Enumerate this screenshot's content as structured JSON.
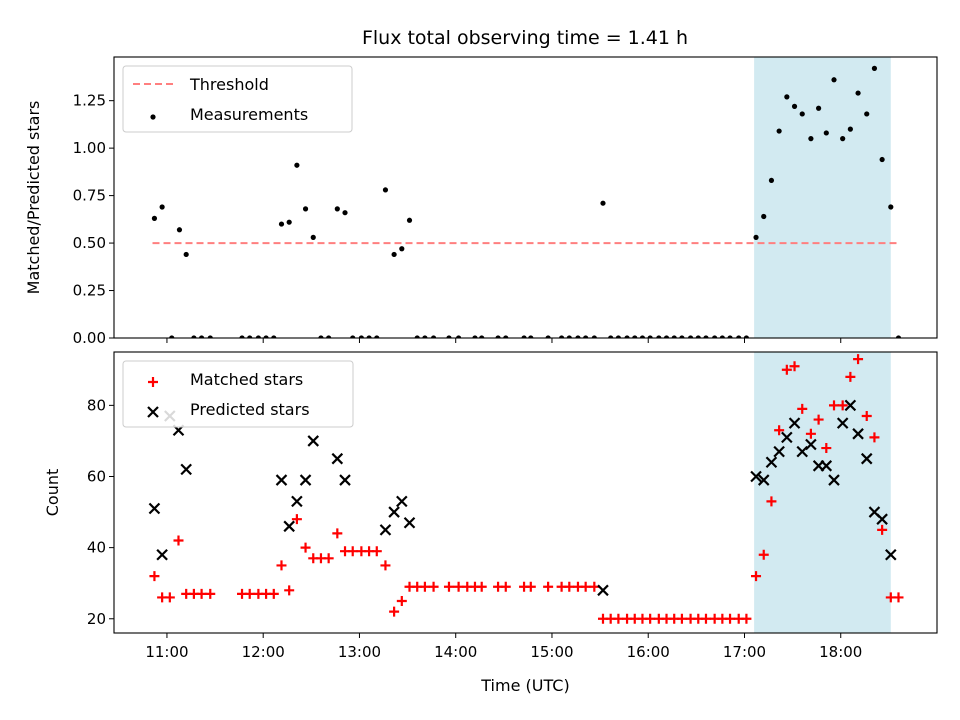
{
  "figure": {
    "title": "Flux total observing time = 1.41 h"
  },
  "chart_data": [
    {
      "type": "scatter",
      "title": "Flux total observing time = 1.41 h",
      "xlabel": "",
      "ylabel": "Matched/Predicted stars",
      "xlim": [
        10.45,
        19.0
      ],
      "ylim": [
        0.0,
        1.48
      ],
      "yticks": [
        0.0,
        0.25,
        0.5,
        0.75,
        1.0,
        1.25
      ],
      "ytick_labels": [
        "0.00",
        "0.25",
        "0.50",
        "0.75",
        "1.00",
        "1.25"
      ],
      "legend_position": "top-left",
      "shaded_region": {
        "x": [
          17.1,
          18.52
        ],
        "color": "#add8e6"
      },
      "threshold": {
        "name": "Threshold",
        "y": 0.5,
        "x": [
          10.85,
          18.6
        ],
        "color": "#ff7f7f"
      },
      "series": [
        {
          "name": "Measurements",
          "color": "#000000",
          "points": [
            [
              10.87,
              0.63
            ],
            [
              10.95,
              0.69
            ],
            [
              11.05,
              0.0
            ],
            [
              11.13,
              0.57
            ],
            [
              11.2,
              0.44
            ],
            [
              11.28,
              0.0
            ],
            [
              11.36,
              0.0
            ],
            [
              11.45,
              0.0
            ],
            [
              11.78,
              0.0
            ],
            [
              11.86,
              0.0
            ],
            [
              11.95,
              0.0
            ],
            [
              12.03,
              0.0
            ],
            [
              12.11,
              0.0
            ],
            [
              12.19,
              0.6
            ],
            [
              12.27,
              0.61
            ],
            [
              12.35,
              0.91
            ],
            [
              12.44,
              0.68
            ],
            [
              12.52,
              0.53
            ],
            [
              12.6,
              0.0
            ],
            [
              12.68,
              0.0
            ],
            [
              12.77,
              0.68
            ],
            [
              12.85,
              0.66
            ],
            [
              12.93,
              0.0
            ],
            [
              13.02,
              0.0
            ],
            [
              13.1,
              0.0
            ],
            [
              13.18,
              0.0
            ],
            [
              13.27,
              0.78
            ],
            [
              13.36,
              0.44
            ],
            [
              13.44,
              0.47
            ],
            [
              13.52,
              0.62
            ],
            [
              13.6,
              0.0
            ],
            [
              13.68,
              0.0
            ],
            [
              13.77,
              0.0
            ],
            [
              13.93,
              0.0
            ],
            [
              14.03,
              0.0
            ],
            [
              14.2,
              0.0
            ],
            [
              14.27,
              0.0
            ],
            [
              14.44,
              0.0
            ],
            [
              14.52,
              0.0
            ],
            [
              14.71,
              0.0
            ],
            [
              14.78,
              0.0
            ],
            [
              14.96,
              0.0
            ],
            [
              15.1,
              0.0
            ],
            [
              15.18,
              0.0
            ],
            [
              15.27,
              0.0
            ],
            [
              15.35,
              0.0
            ],
            [
              15.44,
              0.0
            ],
            [
              15.53,
              0.71
            ],
            [
              15.61,
              0.0
            ],
            [
              15.69,
              0.0
            ],
            [
              15.78,
              0.0
            ],
            [
              15.86,
              0.0
            ],
            [
              15.94,
              0.0
            ],
            [
              16.02,
              0.0
            ],
            [
              16.11,
              0.0
            ],
            [
              16.19,
              0.0
            ],
            [
              16.27,
              0.0
            ],
            [
              16.35,
              0.0
            ],
            [
              16.44,
              0.0
            ],
            [
              16.52,
              0.0
            ],
            [
              16.6,
              0.0
            ],
            [
              16.69,
              0.0
            ],
            [
              16.77,
              0.0
            ],
            [
              16.85,
              0.0
            ],
            [
              16.94,
              0.0
            ],
            [
              17.02,
              0.0
            ],
            [
              17.12,
              0.53
            ],
            [
              17.2,
              0.64
            ],
            [
              17.28,
              0.83
            ],
            [
              17.36,
              1.09
            ],
            [
              17.44,
              1.27
            ],
            [
              17.52,
              1.22
            ],
            [
              17.6,
              1.18
            ],
            [
              17.69,
              1.05
            ],
            [
              17.77,
              1.21
            ],
            [
              17.85,
              1.08
            ],
            [
              17.93,
              1.36
            ],
            [
              18.02,
              1.05
            ],
            [
              18.1,
              1.1
            ],
            [
              18.18,
              1.29
            ],
            [
              18.27,
              1.18
            ],
            [
              18.35,
              1.42
            ],
            [
              18.43,
              0.94
            ],
            [
              18.52,
              0.69
            ],
            [
              18.6,
              0.0
            ]
          ]
        }
      ]
    },
    {
      "type": "scatter",
      "xlabel": "Time (UTC)",
      "ylabel": "Count",
      "xlim": [
        10.45,
        19.0
      ],
      "ylim": [
        16.0,
        95.0
      ],
      "xticks": [
        11,
        12,
        13,
        14,
        15,
        16,
        17,
        18
      ],
      "xtick_labels": [
        "11:00",
        "12:00",
        "13:00",
        "14:00",
        "15:00",
        "16:00",
        "17:00",
        "18:00"
      ],
      "yticks": [
        20,
        40,
        60,
        80
      ],
      "ytick_labels": [
        "20",
        "40",
        "60",
        "80"
      ],
      "legend_position": "top-left",
      "shaded_region": {
        "x": [
          17.1,
          18.52
        ],
        "color": "#add8e6"
      },
      "series": [
        {
          "name": "Matched stars",
          "marker": "plus",
          "color": "#ff0000",
          "points": [
            [
              10.87,
              32
            ],
            [
              10.95,
              26
            ],
            [
              11.03,
              26
            ],
            [
              11.12,
              42
            ],
            [
              11.2,
              27
            ],
            [
              11.28,
              27
            ],
            [
              11.36,
              27
            ],
            [
              11.45,
              27
            ],
            [
              11.78,
              27
            ],
            [
              11.86,
              27
            ],
            [
              11.95,
              27
            ],
            [
              12.03,
              27
            ],
            [
              12.11,
              27
            ],
            [
              12.19,
              35
            ],
            [
              12.27,
              28
            ],
            [
              12.35,
              48
            ],
            [
              12.44,
              40
            ],
            [
              12.52,
              37
            ],
            [
              12.6,
              37
            ],
            [
              12.68,
              37
            ],
            [
              12.77,
              44
            ],
            [
              12.85,
              39
            ],
            [
              12.93,
              39
            ],
            [
              13.02,
              39
            ],
            [
              13.1,
              39
            ],
            [
              13.18,
              39
            ],
            [
              13.27,
              35
            ],
            [
              13.36,
              22
            ],
            [
              13.44,
              25
            ],
            [
              13.52,
              29
            ],
            [
              13.6,
              29
            ],
            [
              13.68,
              29
            ],
            [
              13.77,
              29
            ],
            [
              13.93,
              29
            ],
            [
              14.03,
              29
            ],
            [
              14.12,
              29
            ],
            [
              14.2,
              29
            ],
            [
              14.27,
              29
            ],
            [
              14.44,
              29
            ],
            [
              14.52,
              29
            ],
            [
              14.71,
              29
            ],
            [
              14.78,
              29
            ],
            [
              14.96,
              29
            ],
            [
              15.1,
              29
            ],
            [
              15.18,
              29
            ],
            [
              15.27,
              29
            ],
            [
              15.35,
              29
            ],
            [
              15.44,
              29
            ],
            [
              15.53,
              20
            ],
            [
              15.61,
              20
            ],
            [
              15.69,
              20
            ],
            [
              15.78,
              20
            ],
            [
              15.86,
              20
            ],
            [
              15.94,
              20
            ],
            [
              16.02,
              20
            ],
            [
              16.11,
              20
            ],
            [
              16.19,
              20
            ],
            [
              16.27,
              20
            ],
            [
              16.35,
              20
            ],
            [
              16.44,
              20
            ],
            [
              16.52,
              20
            ],
            [
              16.6,
              20
            ],
            [
              16.69,
              20
            ],
            [
              16.77,
              20
            ],
            [
              16.85,
              20
            ],
            [
              16.94,
              20
            ],
            [
              17.02,
              20
            ],
            [
              17.12,
              32
            ],
            [
              17.2,
              38
            ],
            [
              17.28,
              53
            ],
            [
              17.36,
              73
            ],
            [
              17.44,
              90
            ],
            [
              17.52,
              91
            ],
            [
              17.6,
              79
            ],
            [
              17.69,
              72
            ],
            [
              17.77,
              76
            ],
            [
              17.85,
              68
            ],
            [
              17.93,
              80
            ],
            [
              18.02,
              80
            ],
            [
              18.1,
              88
            ],
            [
              18.18,
              93
            ],
            [
              18.27,
              77
            ],
            [
              18.35,
              71
            ],
            [
              18.43,
              45
            ],
            [
              18.52,
              26
            ],
            [
              18.6,
              26
            ]
          ]
        },
        {
          "name": "Predicted stars",
          "marker": "x",
          "color": "#000000",
          "points": [
            [
              10.87,
              51
            ],
            [
              10.95,
              38
            ],
            [
              11.03,
              77
            ],
            [
              11.12,
              73
            ],
            [
              11.2,
              62
            ],
            [
              12.19,
              59
            ],
            [
              12.27,
              46
            ],
            [
              12.35,
              53
            ],
            [
              12.44,
              59
            ],
            [
              12.52,
              70
            ],
            [
              12.77,
              65
            ],
            [
              12.85,
              59
            ],
            [
              13.27,
              45
            ],
            [
              13.36,
              50
            ],
            [
              13.44,
              53
            ],
            [
              13.52,
              47
            ],
            [
              15.53,
              28
            ],
            [
              17.12,
              60
            ],
            [
              17.2,
              59
            ],
            [
              17.28,
              64
            ],
            [
              17.36,
              67
            ],
            [
              17.44,
              71
            ],
            [
              17.52,
              75
            ],
            [
              17.6,
              67
            ],
            [
              17.69,
              69
            ],
            [
              17.77,
              63
            ],
            [
              17.85,
              63
            ],
            [
              17.93,
              59
            ],
            [
              18.02,
              75
            ],
            [
              18.1,
              80
            ],
            [
              18.18,
              72
            ],
            [
              18.27,
              65
            ],
            [
              18.35,
              50
            ],
            [
              18.43,
              48
            ],
            [
              18.52,
              38
            ]
          ]
        }
      ]
    }
  ]
}
